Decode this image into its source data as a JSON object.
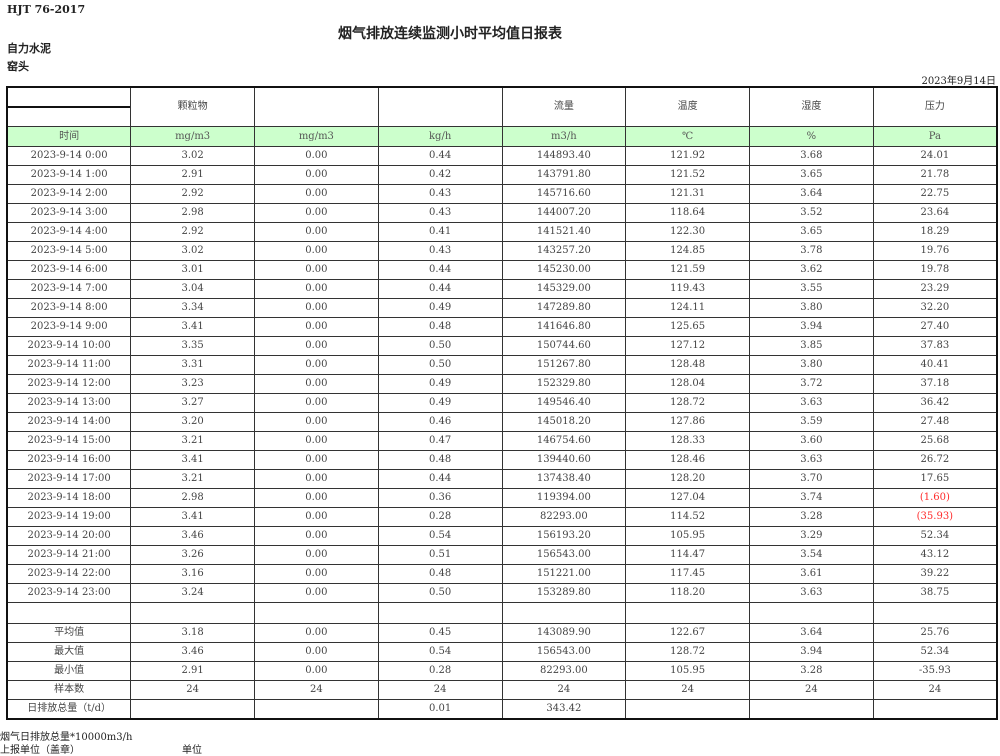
{
  "header": {
    "standard": "HJT  76-2017",
    "title": "烟气排放连续监测小时平均值日报表",
    "company": "自力水泥",
    "site": "窑头",
    "date": "2023年9月14日"
  },
  "columns": [
    "",
    "颗粒物",
    "",
    "",
    "流量",
    "温度",
    "湿度",
    "压力"
  ],
  "units": [
    "时间",
    "mg/m3",
    "mg/m3",
    "kg/h",
    "m3/h",
    "℃",
    "%",
    "Pa"
  ],
  "negative_color": "#ff2a2a",
  "rows": [
    [
      "2023-9-14 0:00",
      "3.02",
      "0.00",
      "0.44",
      "144893.40",
      "121.92",
      "3.68",
      "24.01"
    ],
    [
      "2023-9-14 1:00",
      "2.91",
      "0.00",
      "0.42",
      "143791.80",
      "121.52",
      "3.65",
      "21.78"
    ],
    [
      "2023-9-14 2:00",
      "2.92",
      "0.00",
      "0.43",
      "145716.60",
      "121.31",
      "3.64",
      "22.75"
    ],
    [
      "2023-9-14 3:00",
      "2.98",
      "0.00",
      "0.43",
      "144007.20",
      "118.64",
      "3.52",
      "23.64"
    ],
    [
      "2023-9-14 4:00",
      "2.92",
      "0.00",
      "0.41",
      "141521.40",
      "122.30",
      "3.65",
      "18.29"
    ],
    [
      "2023-9-14 5:00",
      "3.02",
      "0.00",
      "0.43",
      "143257.20",
      "124.85",
      "3.78",
      "19.76"
    ],
    [
      "2023-9-14 6:00",
      "3.01",
      "0.00",
      "0.44",
      "145230.00",
      "121.59",
      "3.62",
      "19.78"
    ],
    [
      "2023-9-14 7:00",
      "3.04",
      "0.00",
      "0.44",
      "145329.00",
      "119.43",
      "3.55",
      "23.29"
    ],
    [
      "2023-9-14 8:00",
      "3.34",
      "0.00",
      "0.49",
      "147289.80",
      "124.11",
      "3.80",
      "32.20"
    ],
    [
      "2023-9-14 9:00",
      "3.41",
      "0.00",
      "0.48",
      "141646.80",
      "125.65",
      "3.94",
      "27.40"
    ],
    [
      "2023-9-14 10:00",
      "3.35",
      "0.00",
      "0.50",
      "150744.60",
      "127.12",
      "3.85",
      "37.83"
    ],
    [
      "2023-9-14 11:00",
      "3.31",
      "0.00",
      "0.50",
      "151267.80",
      "128.48",
      "3.80",
      "40.41"
    ],
    [
      "2023-9-14 12:00",
      "3.23",
      "0.00",
      "0.49",
      "152329.80",
      "128.04",
      "3.72",
      "37.18"
    ],
    [
      "2023-9-14 13:00",
      "3.27",
      "0.00",
      "0.49",
      "149546.40",
      "128.72",
      "3.63",
      "36.42"
    ],
    [
      "2023-9-14 14:00",
      "3.20",
      "0.00",
      "0.46",
      "145018.20",
      "127.86",
      "3.59",
      "27.48"
    ],
    [
      "2023-9-14 15:00",
      "3.21",
      "0.00",
      "0.47",
      "146754.60",
      "128.33",
      "3.60",
      "25.68"
    ],
    [
      "2023-9-14 16:00",
      "3.41",
      "0.00",
      "0.48",
      "139440.60",
      "128.46",
      "3.63",
      "26.72"
    ],
    [
      "2023-9-14 17:00",
      "3.21",
      "0.00",
      "0.44",
      "137438.40",
      "128.20",
      "3.70",
      "17.65"
    ],
    [
      "2023-9-14 18:00",
      "2.98",
      "0.00",
      "0.36",
      "119394.00",
      "127.04",
      "3.74",
      "(1.60)"
    ],
    [
      "2023-9-14 19:00",
      "3.41",
      "0.00",
      "0.28",
      "82293.00",
      "114.52",
      "3.28",
      "(35.93)"
    ],
    [
      "2023-9-14 20:00",
      "3.46",
      "0.00",
      "0.54",
      "156193.20",
      "105.95",
      "3.29",
      "52.34"
    ],
    [
      "2023-9-14 21:00",
      "3.26",
      "0.00",
      "0.51",
      "156543.00",
      "114.47",
      "3.54",
      "43.12"
    ],
    [
      "2023-9-14 22:00",
      "3.16",
      "0.00",
      "0.48",
      "151221.00",
      "117.45",
      "3.61",
      "39.22"
    ],
    [
      "2023-9-14 23:00",
      "3.24",
      "0.00",
      "0.50",
      "153289.80",
      "118.20",
      "3.63",
      "38.75"
    ]
  ],
  "summary": [
    [
      "平均值",
      "3.18",
      "0.00",
      "0.45",
      "143089.90",
      "122.67",
      "3.64",
      "25.76"
    ],
    [
      "最大值",
      "3.46",
      "0.00",
      "0.54",
      "156543.00",
      "128.72",
      "3.94",
      "52.34"
    ],
    [
      "最小值",
      "2.91",
      "0.00",
      "0.28",
      "82293.00",
      "105.95",
      "3.28",
      "-35.93"
    ],
    [
      "样本数",
      "24",
      "24",
      "24",
      "24",
      "24",
      "24",
      "24"
    ],
    [
      "日排放总量（t/d）",
      "",
      "",
      "0.01",
      "343.42",
      "",
      "",
      ""
    ]
  ],
  "footer": {
    "note": "烟气日排放总量*10000m3/h",
    "reporter": "上报单位（盖章）",
    "unit_label": "单位"
  }
}
